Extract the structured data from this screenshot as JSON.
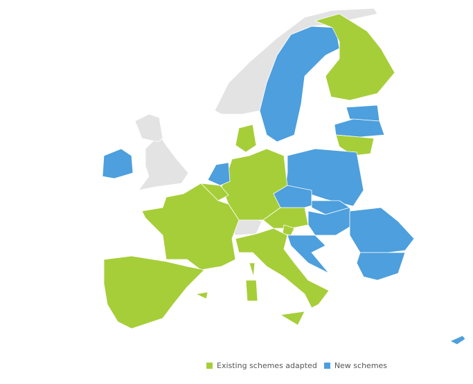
{
  "colors": {
    "existing": "#a6ce39",
    "new": "#4d9fdd",
    "other": "#e3e3e3"
  },
  "legend": [
    {
      "key": "existing",
      "label": "Existing schemes adapted"
    },
    {
      "key": "new",
      "label": "New schemes"
    }
  ],
  "countries": [
    {
      "id": "norway",
      "group": "other"
    },
    {
      "id": "uk",
      "group": "other"
    },
    {
      "id": "scotland",
      "group": "other"
    },
    {
      "id": "switzerland",
      "group": "other"
    },
    {
      "id": "sweden",
      "group": "new"
    },
    {
      "id": "finland",
      "group": "existing"
    },
    {
      "id": "estonia",
      "group": "new"
    },
    {
      "id": "latvia",
      "group": "new"
    },
    {
      "id": "lithuania",
      "group": "existing"
    },
    {
      "id": "poland",
      "group": "new"
    },
    {
      "id": "germany",
      "group": "existing"
    },
    {
      "id": "denmark",
      "group": "existing"
    },
    {
      "id": "netherlands",
      "group": "new"
    },
    {
      "id": "belgium",
      "group": "existing"
    },
    {
      "id": "france",
      "group": "existing"
    },
    {
      "id": "austria",
      "group": "existing"
    },
    {
      "id": "czechia",
      "group": "new"
    },
    {
      "id": "slovakia",
      "group": "new"
    },
    {
      "id": "hungary",
      "group": "new"
    },
    {
      "id": "slovenia",
      "group": "existing"
    },
    {
      "id": "croatia",
      "group": "new"
    },
    {
      "id": "romania",
      "group": "new"
    },
    {
      "id": "bulgaria",
      "group": "new"
    },
    {
      "id": "italy",
      "group": "existing"
    },
    {
      "id": "sicily",
      "group": "existing"
    },
    {
      "id": "sardinia",
      "group": "existing"
    },
    {
      "id": "corsica",
      "group": "existing"
    },
    {
      "id": "spain-portugal",
      "group": "existing"
    },
    {
      "id": "balearic",
      "group": "existing"
    },
    {
      "id": "ireland",
      "group": "new"
    },
    {
      "id": "cyprus",
      "group": "new"
    }
  ]
}
